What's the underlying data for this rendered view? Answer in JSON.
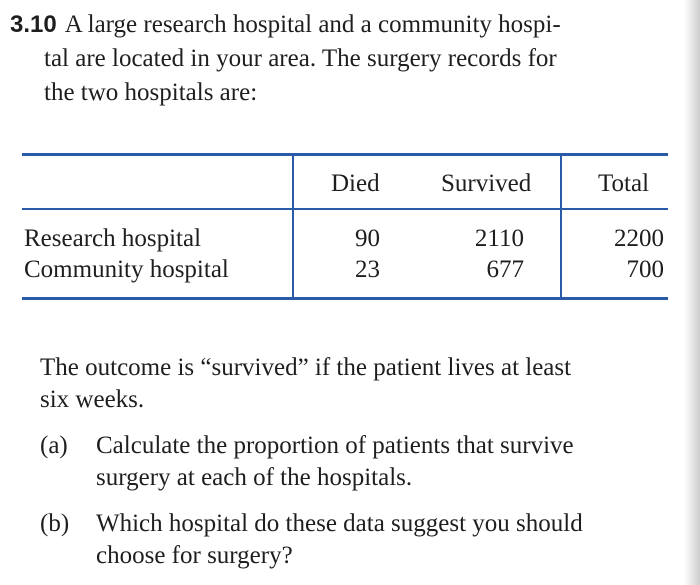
{
  "problem": {
    "number": "3.10",
    "line1": "A large research hospital and a community hospi-",
    "line2": "tal are located in your area. The surgery records for",
    "line3": "the two hospitals are:"
  },
  "table": {
    "headers": [
      "Died",
      "Survived",
      "Total"
    ],
    "rows": [
      {
        "label": "Research hospital",
        "died": "90",
        "survived": "2110",
        "total": "2200"
      },
      {
        "label": "Community hospital",
        "died": "23",
        "survived": "677",
        "total": "700"
      }
    ]
  },
  "outcome": {
    "line1": "The outcome is “survived” if the patient lives at least",
    "line2": "six weeks."
  },
  "parts": [
    {
      "label": "(a)",
      "line1": "Calculate the proportion of patients that survive",
      "line2": "surgery at each of the hospitals."
    },
    {
      "label": "(b)",
      "line1": "Which hospital do these data suggest you should",
      "line2": "choose for surgery?"
    }
  ]
}
